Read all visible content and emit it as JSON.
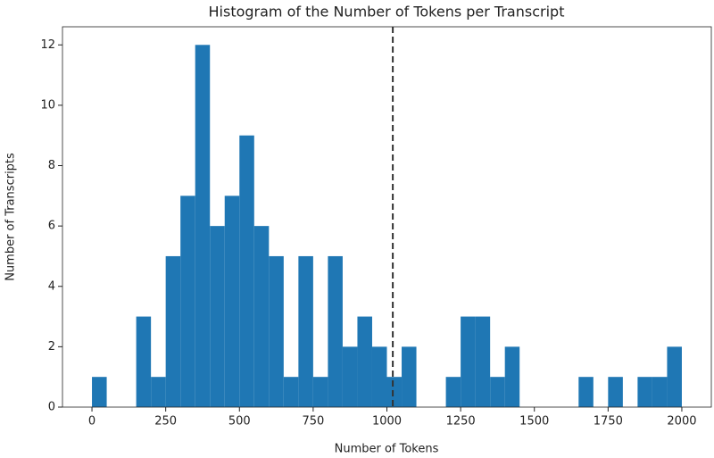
{
  "chart_data": {
    "type": "histogram",
    "title": "Histogram of the Number of Tokens per Transcript",
    "x_label": "Number of Tokens",
    "y_label": "Number of Transcripts",
    "bins": [
      0,
      50,
      100,
      150,
      200,
      250,
      300,
      350,
      400,
      450,
      500,
      550,
      600,
      650,
      700,
      750,
      800,
      850,
      900,
      950,
      1000,
      1050,
      1100,
      1150,
      1200,
      1250,
      1300,
      1350,
      1400,
      1450,
      1500,
      1550,
      1600,
      1650,
      1700,
      1750,
      1800,
      1850,
      1900,
      1950,
      2000
    ],
    "values": [
      1,
      0,
      0,
      3,
      1,
      5,
      7,
      12,
      6,
      7,
      9,
      6,
      5,
      1,
      5,
      1,
      5,
      2,
      3,
      2,
      1,
      2,
      0,
      0,
      1,
      3,
      3,
      1,
      2,
      0,
      0,
      0,
      0,
      1,
      0,
      1,
      0,
      1,
      1,
      2
    ],
    "color": "#1f77b4",
    "vlines": [
      1020
    ],
    "xlim": [
      -100,
      2100
    ],
    "ylim": [
      0,
      12.6
    ],
    "xticks": [
      0,
      250,
      500,
      750,
      1000,
      1250,
      1500,
      1750,
      2000
    ],
    "yticks": [
      0,
      2,
      4,
      6,
      8,
      10,
      12
    ]
  }
}
